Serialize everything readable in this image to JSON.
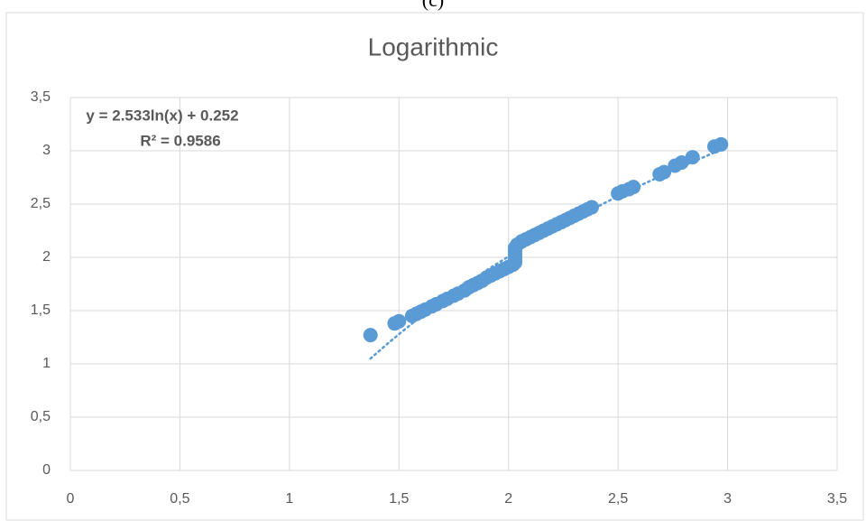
{
  "chart_data": {
    "type": "scatter",
    "caption": "(c)",
    "title": "Logarithmic",
    "x": [
      1.37,
      1.48,
      1.5,
      1.56,
      1.58,
      1.6,
      1.62,
      1.65,
      1.67,
      1.7,
      1.72,
      1.75,
      1.77,
      1.8,
      1.82,
      1.84,
      1.86,
      1.88,
      1.9,
      1.92,
      1.94,
      1.96,
      1.98,
      2.0,
      2.02,
      2.03,
      2.03,
      2.03,
      2.03,
      2.03,
      2.03,
      2.04,
      2.06,
      2.08,
      2.1,
      2.12,
      2.14,
      2.16,
      2.18,
      2.2,
      2.22,
      2.24,
      2.26,
      2.28,
      2.3,
      2.32,
      2.34,
      2.36,
      2.38,
      2.5,
      2.52,
      2.55,
      2.57,
      2.69,
      2.71,
      2.76,
      2.79,
      2.84,
      2.94,
      2.97
    ],
    "values": [
      1.27,
      1.38,
      1.4,
      1.45,
      1.47,
      1.49,
      1.51,
      1.54,
      1.56,
      1.59,
      1.61,
      1.64,
      1.66,
      1.69,
      1.72,
      1.74,
      1.76,
      1.78,
      1.81,
      1.83,
      1.85,
      1.87,
      1.89,
      1.91,
      1.93,
      1.95,
      1.97,
      2.0,
      2.03,
      2.06,
      2.09,
      2.12,
      2.15,
      2.17,
      2.19,
      2.21,
      2.23,
      2.25,
      2.27,
      2.29,
      2.31,
      2.33,
      2.35,
      2.37,
      2.39,
      2.41,
      2.43,
      2.45,
      2.47,
      2.6,
      2.62,
      2.64,
      2.66,
      2.78,
      2.8,
      2.86,
      2.89,
      2.94,
      3.04,
      3.06
    ],
    "color": "#5b9bd5",
    "trendline": {
      "kind": "log",
      "a": 2.533,
      "b": 0.252,
      "x_range": [
        1.37,
        2.97
      ],
      "equation": "y = 2.533ln(x) + 0.252",
      "r_squared": "R² = 0.9586"
    },
    "xlim": [
      0,
      3.5
    ],
    "xticks": [
      0,
      {
        "value": 0.5,
        "label": "0,5"
      },
      1,
      {
        "value": 1.5,
        "label": "1,5"
      },
      2,
      {
        "value": 2.5,
        "label": "2,5"
      },
      3,
      {
        "value": 3.5,
        "label": "3,5"
      }
    ],
    "ylim": [
      0,
      3.5
    ],
    "yticks": [
      0,
      {
        "value": 0.5,
        "label": "0,5"
      },
      1,
      {
        "value": 1.5,
        "label": "1,5"
      },
      2,
      {
        "value": 2.5,
        "label": "2,5"
      },
      3,
      {
        "value": 3.5,
        "label": "3,5"
      }
    ],
    "grid": true
  }
}
